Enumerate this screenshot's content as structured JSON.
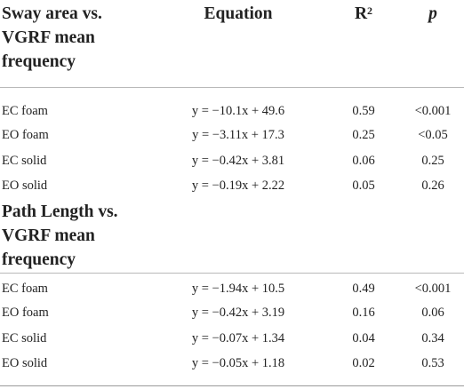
{
  "header": {
    "col1": [
      "Sway area vs.",
      "VGRF mean",
      "frequency"
    ],
    "col2": "Equation",
    "col3_base": "R",
    "col3_sup": "2",
    "col4": "p"
  },
  "section1": {
    "rows": [
      {
        "label": "EC foam",
        "equation": "y = −10.1x + 49.6",
        "r2": "0.59",
        "p": "<0.001"
      },
      {
        "label": "EO foam",
        "equation": "y = −3.11x + 17.3",
        "r2": "0.25",
        "p": "<0.05"
      },
      {
        "label": "EC solid",
        "equation": "y = −0.42x + 3.81",
        "r2": "0.06",
        "p": "0.25"
      },
      {
        "label": "EO solid",
        "equation": "y = −0.19x + 2.22",
        "r2": "0.05",
        "p": "0.26"
      }
    ]
  },
  "section2": {
    "title": [
      "Path Length vs.",
      "VGRF mean",
      "frequency"
    ],
    "rows": [
      {
        "label": "EC foam",
        "equation": "y = −1.94x + 10.5",
        "r2": "0.49",
        "p": "<0.001"
      },
      {
        "label": "EO foam",
        "equation": "y = −0.42x + 3.19",
        "r2": "0.16",
        "p": "0.06"
      },
      {
        "label": "EC solid",
        "equation": "y = −0.07x + 1.34",
        "r2": "0.04",
        "p": "0.34"
      },
      {
        "label": "EO solid",
        "equation": "y = −0.05x + 1.18",
        "r2": "0.02",
        "p": "0.53"
      }
    ]
  }
}
